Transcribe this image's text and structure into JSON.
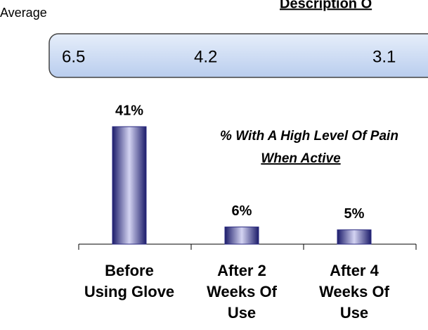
{
  "chart_data": {
    "type": "bar",
    "header": "Description O",
    "averages": {
      "label": "Average",
      "values": [
        6.5,
        4.2,
        3.1
      ]
    },
    "annotation": {
      "text": "% With A High Level Of Pain",
      "emphasis": "When Active"
    },
    "categories": [
      "Before Using Glove",
      "After 2 Weeks Of Use",
      "After 4 Weeks Of Use"
    ],
    "values": [
      41,
      6,
      5
    ],
    "value_labels": [
      "41%",
      "6%",
      "5%"
    ],
    "color": "#2a2a80"
  }
}
